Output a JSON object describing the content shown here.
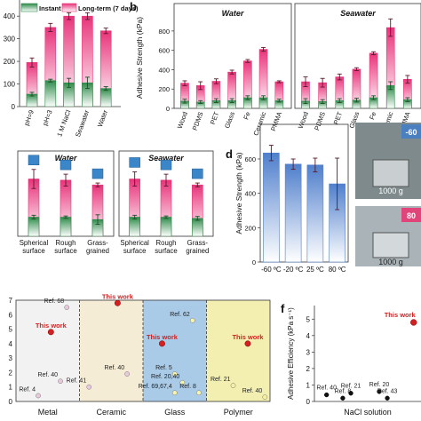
{
  "panel_labels": {
    "b": "b",
    "d": "d",
    "f": "f"
  },
  "colors": {
    "instant_green": "#2e8b4a",
    "longterm_pink": "#e8337a",
    "error_dark": "#5a1a2a",
    "water_bg": "#ffffff",
    "metal_bg": "#f2f2f2",
    "ceramic_bg": "#f5ecd6",
    "glass_bg": "#a9cbe8",
    "polymer_bg": "#f3efb0",
    "thiswork_red": "#d42020",
    "ref_blue": "#b6d7f5",
    "ref_yellow": "#f8f0a0"
  },
  "photo_labels": {
    "top": "-60",
    "bottom": "80",
    "weight_top": "1000 g",
    "weight_bottom": "1000 g"
  },
  "chart_data": [
    {
      "id": "a",
      "type": "bar",
      "series": [
        {
          "name": "Instant",
          "values": [
            55,
            115,
            105,
            105,
            80
          ],
          "errors": [
            8,
            6,
            20,
            25,
            8
          ]
        },
        {
          "name": "Long-term (7 days)",
          "values": [
            195,
            350,
            400,
            400,
            335
          ],
          "errors": [
            20,
            18,
            15,
            15,
            12
          ]
        }
      ],
      "categories": [
        "pH=9",
        "pH=3",
        "1 M NaCl",
        "Seawater",
        "Water"
      ],
      "yticks": [
        "0",
        "100",
        "200",
        "300",
        "400"
      ],
      "ylim": [
        0,
        440
      ]
    },
    {
      "id": "b",
      "type": "bar",
      "ylabel": "Adhesive Strength (kPa)",
      "ylim": [
        0,
        900
      ],
      "yticks": [
        "0",
        "200",
        "400",
        "600",
        "800"
      ],
      "groups": [
        {
          "title": "Water",
          "categories": [
            "Wood",
            "PDMS",
            "PET",
            "Glass",
            "Fe",
            "Ceramic",
            "PMMA"
          ],
          "instant": [
            75,
            65,
            80,
            80,
            110,
            110,
            80
          ],
          "instant_err": [
            20,
            15,
            20,
            20,
            20,
            20,
            15
          ],
          "longterm": [
            260,
            235,
            280,
            375,
            490,
            610,
            275
          ],
          "longterm_err": [
            25,
            40,
            25,
            20,
            15,
            20,
            10
          ]
        },
        {
          "title": "Seawater",
          "categories": [
            "Wood",
            "PDMS",
            "PET",
            "Glass",
            "Fe",
            "Ceramic",
            "PMMA"
          ],
          "instant": [
            75,
            70,
            80,
            85,
            110,
            235,
            90
          ],
          "instant_err": [
            25,
            20,
            20,
            20,
            20,
            40,
            20
          ],
          "longterm": [
            275,
            265,
            325,
            405,
            570,
            835,
            300
          ],
          "longterm_err": [
            50,
            45,
            30,
            15,
            15,
            90,
            40
          ]
        }
      ]
    },
    {
      "id": "c",
      "type": "bar",
      "groups": [
        {
          "title": "Water",
          "categories": [
            "Spherical\nsurface",
            "Rough\nsurface",
            "Grass-\ngrained"
          ],
          "instant": [
            80,
            80,
            70
          ],
          "instant_err": [
            8,
            5,
            20
          ],
          "longterm": [
            240,
            235,
            215
          ],
          "longterm_err": [
            40,
            25,
            8
          ]
        },
        {
          "title": "Seawater",
          "categories": [
            "Spherical\nsurface",
            "Rough\nsurface",
            "Grass-\ngrained"
          ],
          "instant": [
            80,
            80,
            75
          ],
          "instant_err": [
            8,
            5,
            8
          ],
          "longterm": [
            240,
            235,
            215
          ],
          "longterm_err": [
            30,
            25,
            8
          ]
        }
      ],
      "ylim": [
        0,
        320
      ]
    },
    {
      "id": "d",
      "type": "bar",
      "ylabel": "Adhesive Strength (kPa)",
      "categories": [
        "-60 ºC",
        "-20 ºC",
        "25 ºC",
        "80 ºC"
      ],
      "values": [
        635,
        570,
        565,
        455
      ],
      "errors": [
        45,
        30,
        40,
        150
      ],
      "ylim": [
        0,
        750
      ],
      "yticks": [
        "0",
        "200",
        "400",
        "600"
      ]
    },
    {
      "id": "e",
      "type": "scatter",
      "yticks": [
        "0",
        "1",
        "2",
        "3",
        "4",
        "5",
        "6",
        "7"
      ],
      "ylim": [
        0,
        7
      ],
      "regions": [
        "Metal",
        "Ceramic",
        "Glass",
        "Polymer"
      ],
      "points": [
        {
          "label": "This work",
          "region": 0,
          "x": 0.55,
          "y": 4.8,
          "kind": "this"
        },
        {
          "label": "Ref. 68",
          "region": 0,
          "x": 0.8,
          "y": 6.5,
          "kind": "ref"
        },
        {
          "label": "Ref. 40",
          "region": 0,
          "x": 0.7,
          "y": 1.4,
          "kind": "ref"
        },
        {
          "label": "Ref. 4",
          "region": 0,
          "x": 0.35,
          "y": 0.4,
          "kind": "ref"
        },
        {
          "label": "This work",
          "region": 1,
          "x": 0.6,
          "y": 6.8,
          "kind": "this"
        },
        {
          "label": "Ref. 40",
          "region": 1,
          "x": 0.75,
          "y": 1.9,
          "kind": "ref"
        },
        {
          "label": "Ref. 41",
          "region": 1,
          "x": 0.15,
          "y": 1.0,
          "kind": "ref"
        },
        {
          "label": "This work",
          "region": 2,
          "x": 0.3,
          "y": 4.0,
          "kind": "this"
        },
        {
          "label": "Ref. 62",
          "region": 2,
          "x": 0.78,
          "y": 5.6,
          "kind": "ref"
        },
        {
          "label": "Ref. 5",
          "region": 2,
          "x": 0.5,
          "y": 1.9,
          "kind": "ref"
        },
        {
          "label": "Ref. 20,40",
          "region": 2,
          "x": 0.62,
          "y": 1.3,
          "kind": "ref"
        },
        {
          "label": "Ref. 8",
          "region": 2,
          "x": 0.88,
          "y": 0.6,
          "kind": "ref"
        },
        {
          "label": "Ref. 69,67,4",
          "region": 2,
          "x": 0.5,
          "y": 0.6,
          "kind": "ref"
        },
        {
          "label": "This work",
          "region": 3,
          "x": 0.65,
          "y": 4.0,
          "kind": "this"
        },
        {
          "label": "Ref. 21",
          "region": 3,
          "x": 0.42,
          "y": 1.1,
          "kind": "ref"
        },
        {
          "label": "Ref. 40",
          "region": 3,
          "x": 0.92,
          "y": 0.3,
          "kind": "ref"
        }
      ]
    },
    {
      "id": "f",
      "type": "scatter",
      "ylabel": "Adhesive Efficiency (kPa s⁻¹)",
      "xlabel": "NaCl solution",
      "yticks": [
        "0",
        "1",
        "2",
        "3",
        "4",
        "5"
      ],
      "ylim": [
        0,
        5.5
      ],
      "points": [
        {
          "label": "This work",
          "x": 0.98,
          "y": 4.8,
          "kind": "this"
        },
        {
          "label": "Ref. 40",
          "x": 0.12,
          "y": 0.4,
          "kind": "ref"
        },
        {
          "label": "Ref. 8",
          "x": 0.28,
          "y": 0.2,
          "kind": "ref"
        },
        {
          "label": "Ref. 21",
          "x": 0.36,
          "y": 0.5,
          "kind": "ref"
        },
        {
          "label": "Ref. 20",
          "x": 0.64,
          "y": 0.6,
          "kind": "ref"
        },
        {
          "label": "Ref. 43",
          "x": 0.72,
          "y": 0.2,
          "kind": "ref"
        }
      ]
    }
  ]
}
